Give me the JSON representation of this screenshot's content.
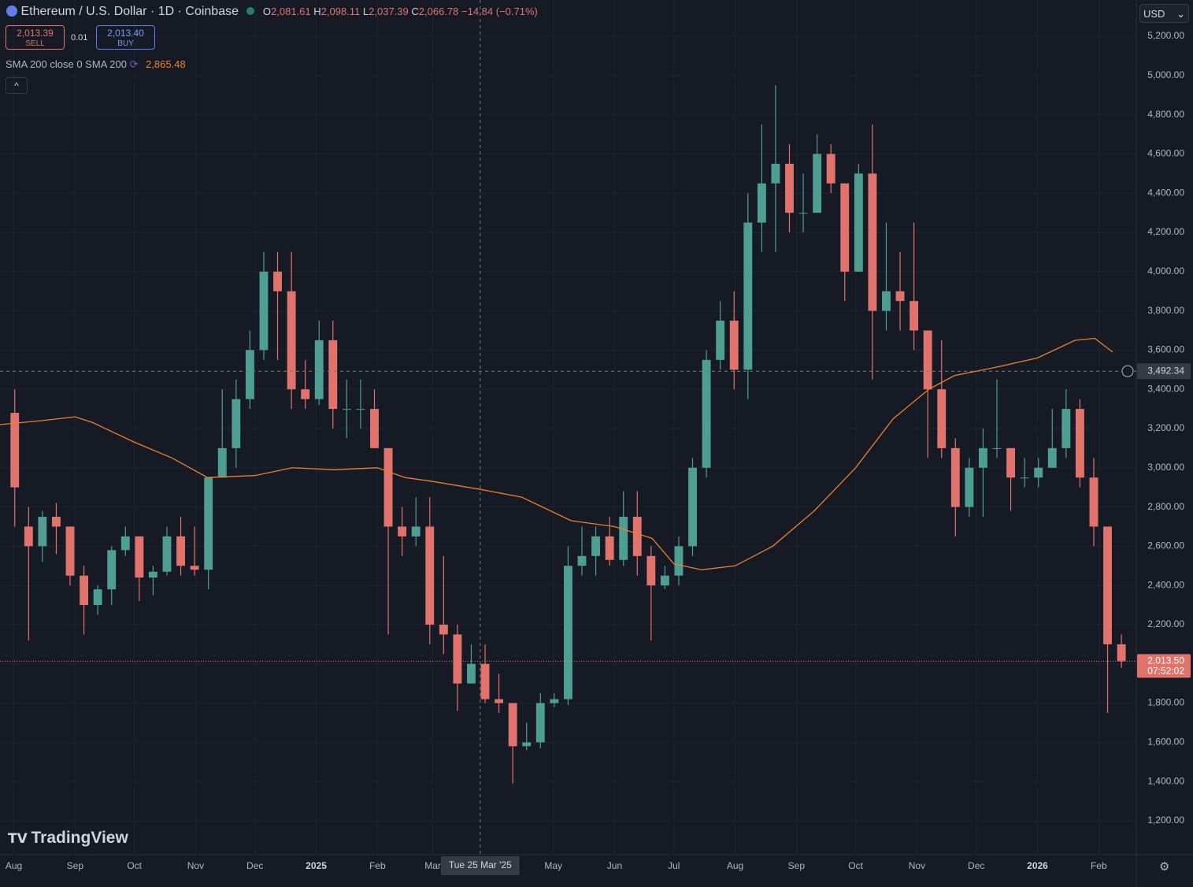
{
  "header": {
    "symbol": "Ethereum / U.S. Dollar · 1D · Coinbase",
    "o_label": "O",
    "open": "2,081.61",
    "h_label": "H",
    "high": "2,098.11",
    "l_label": "L",
    "low": "2,037.39",
    "c_label": "C",
    "close": "2,066.78",
    "change": "−14.84 (−0.71%)",
    "currency": "USD",
    "brand": "TradingView"
  },
  "trade": {
    "sell_price": "2,013.39",
    "sell": "SELL",
    "spread": "0.01",
    "buy_price": "2,013.40",
    "buy": "BUY"
  },
  "chart_data": {
    "type": "candlestick",
    "up_color": "#4f9e92",
    "down_color": "#e0736b",
    "grid": true,
    "xlim": [
      "2024-07-25",
      "2026-02-20"
    ],
    "xticks": [
      {
        "value": "2024-08-01",
        "label": "Aug"
      },
      {
        "value": "2024-09-01",
        "label": "Sep"
      },
      {
        "value": "2024-10-01",
        "label": "Oct"
      },
      {
        "value": "2024-11-01",
        "label": "Nov"
      },
      {
        "value": "2024-12-01",
        "label": "Dec"
      },
      {
        "value": "2025-01-01",
        "label": "2025"
      },
      {
        "value": "2025-02-01",
        "label": "Feb"
      },
      {
        "value": "2025-03-01",
        "label": "Mar"
      },
      {
        "value": "2025-05-01",
        "label": "May"
      },
      {
        "value": "2025-06-01",
        "label": "Jun"
      },
      {
        "value": "2025-07-01",
        "label": "Jul"
      },
      {
        "value": "2025-08-01",
        "label": "Aug"
      },
      {
        "value": "2025-09-01",
        "label": "Sep"
      },
      {
        "value": "2025-10-01",
        "label": "Oct"
      },
      {
        "value": "2025-11-01",
        "label": "Nov"
      },
      {
        "value": "2025-12-01",
        "label": "Dec"
      },
      {
        "value": "2026-01-01",
        "label": "2026"
      },
      {
        "value": "2026-02-01",
        "label": "Feb"
      }
    ],
    "ylim": [
      1027,
      5385
    ],
    "yticks": [
      {
        "value": 1200,
        "label": "1,200.00"
      },
      {
        "value": 1400,
        "label": "1,400.00"
      },
      {
        "value": 1600,
        "label": "1,600.00"
      },
      {
        "value": 1800,
        "label": "1,800.00"
      },
      {
        "value": 2000,
        "label": "2,000.00"
      },
      {
        "value": 2200,
        "label": "2,200.00"
      },
      {
        "value": 2400,
        "label": "2,400.00"
      },
      {
        "value": 2600,
        "label": "2,600.00"
      },
      {
        "value": 2800,
        "label": "2,800.00"
      },
      {
        "value": 3000,
        "label": "3,000.00"
      },
      {
        "value": 3200,
        "label": "3,200.00"
      },
      {
        "value": 3400,
        "label": "3,400.00"
      },
      {
        "value": 3600,
        "label": "3,600.00"
      },
      {
        "value": 3800,
        "label": "3,800.00"
      },
      {
        "value": 4000,
        "label": "4,000.00"
      },
      {
        "value": 4200,
        "label": "4,200.00"
      },
      {
        "value": 4400,
        "label": "4,400.00"
      },
      {
        "value": 4600,
        "label": "4,600.00"
      },
      {
        "value": 4800,
        "label": "4,800.00"
      },
      {
        "value": 5000,
        "label": "5,000.00"
      },
      {
        "value": 5200,
        "label": "5,200.00"
      }
    ],
    "x": [
      "2024-07-29",
      "2024-08-05",
      "2024-08-12",
      "2024-08-19",
      "2024-08-26",
      "2024-09-02",
      "2024-09-09",
      "2024-09-16",
      "2024-09-23",
      "2024-09-30",
      "2024-10-07",
      "2024-10-14",
      "2024-10-21",
      "2024-10-28",
      "2024-11-04",
      "2024-11-11",
      "2024-11-18",
      "2024-11-25",
      "2024-12-02",
      "2024-12-09",
      "2024-12-16",
      "2024-12-23",
      "2024-12-30",
      "2025-01-06",
      "2025-01-13",
      "2025-01-20",
      "2025-01-27",
      "2025-02-03",
      "2025-02-10",
      "2025-02-17",
      "2025-02-24",
      "2025-03-03",
      "2025-03-10",
      "2025-03-17",
      "2025-03-24",
      "2025-03-31",
      "2025-04-07",
      "2025-04-14",
      "2025-04-21",
      "2025-04-28",
      "2025-05-05",
      "2025-05-12",
      "2025-05-19",
      "2025-05-26",
      "2025-06-02",
      "2025-06-09",
      "2025-06-16",
      "2025-06-23",
      "2025-06-30",
      "2025-07-07",
      "2025-07-14",
      "2025-07-21",
      "2025-07-28",
      "2025-08-04",
      "2025-08-11",
      "2025-08-18",
      "2025-08-25",
      "2025-09-01",
      "2025-09-08",
      "2025-09-15",
      "2025-09-22",
      "2025-09-29",
      "2025-10-06",
      "2025-10-13",
      "2025-10-20",
      "2025-10-27",
      "2025-11-03",
      "2025-11-10",
      "2025-11-17",
      "2025-11-24",
      "2025-12-01",
      "2025-12-08",
      "2025-12-15",
      "2025-12-22",
      "2025-12-29",
      "2026-01-05",
      "2026-01-12",
      "2026-01-19",
      "2026-01-26",
      "2026-02-02",
      "2026-02-09"
    ],
    "open": [
      3280,
      2700,
      2600,
      2750,
      2700,
      2450,
      2300,
      2380,
      2580,
      2650,
      2440,
      2470,
      2650,
      2500,
      2480,
      2950,
      3100,
      3350,
      3600,
      4000,
      3900,
      3400,
      3350,
      3650,
      3300,
      3300,
      3300,
      3100,
      2700,
      2650,
      2700,
      2200,
      2150,
      1900,
      2000,
      1820,
      1800,
      1580,
      1600,
      1800,
      1820,
      2500,
      2550,
      2650,
      2530,
      2750,
      2550,
      2400,
      2450,
      2600,
      3000,
      3550,
      3750,
      3500,
      4250,
      4450,
      4550,
      4300,
      4300,
      4600,
      4450,
      4000,
      4500,
      3800,
      3900,
      3850,
      3700,
      3400,
      3100,
      2800,
      3000,
      3100,
      3100,
      2950,
      2950,
      3000,
      3100,
      3300,
      2950,
      2700,
      2100
    ],
    "high": [
      3400,
      2800,
      2780,
      2820,
      2700,
      2500,
      2400,
      2600,
      2700,
      2650,
      2500,
      2700,
      2750,
      2700,
      2950,
      3400,
      3450,
      3700,
      4100,
      4100,
      4100,
      3550,
      3750,
      3750,
      3450,
      3450,
      3400,
      3100,
      2800,
      2850,
      2850,
      2550,
      2200,
      2100,
      2100,
      1950,
      1800,
      1700,
      1850,
      1850,
      2600,
      2700,
      2700,
      2750,
      2880,
      2880,
      2600,
      2500,
      2650,
      3050,
      3600,
      3850,
      3900,
      4400,
      4750,
      4950,
      4650,
      4500,
      4700,
      4650,
      4450,
      4550,
      4750,
      4250,
      4100,
      4250,
      3700,
      3650,
      3150,
      3050,
      3200,
      3450,
      3100,
      3050,
      3050,
      3300,
      3400,
      3350,
      3050,
      2700,
      2150
    ],
    "low": [
      2700,
      2120,
      2520,
      2560,
      2400,
      2150,
      2250,
      2300,
      2550,
      2320,
      2350,
      2450,
      2450,
      2450,
      2380,
      2950,
      3000,
      3300,
      3550,
      3550,
      3300,
      3300,
      3320,
      3200,
      3150,
      3200,
      3100,
      2150,
      2550,
      2600,
      2100,
      2050,
      1760,
      1900,
      1800,
      1750,
      1390,
      1560,
      1570,
      1780,
      1790,
      2450,
      2450,
      2500,
      2500,
      2450,
      2120,
      2380,
      2400,
      2550,
      2950,
      3500,
      3400,
      3350,
      4100,
      4100,
      4200,
      4200,
      4300,
      4400,
      3850,
      4000,
      3450,
      3700,
      3700,
      3600,
      3050,
      3050,
      2650,
      2750,
      2750,
      3050,
      2780,
      2900,
      2900,
      3000,
      3050,
      2900,
      2600,
      1750,
      1980
    ],
    "close": [
      2900,
      2600,
      2750,
      2700,
      2450,
      2300,
      2380,
      2580,
      2650,
      2440,
      2470,
      2650,
      2500,
      2480,
      2950,
      3100,
      3350,
      3600,
      4000,
      3900,
      3400,
      3350,
      3650,
      3300,
      3300,
      3300,
      3100,
      2700,
      2650,
      2700,
      2200,
      2150,
      1900,
      2000,
      1820,
      1800,
      1580,
      1600,
      1800,
      1820,
      2500,
      2550,
      2650,
      2530,
      2750,
      2550,
      2400,
      2450,
      2600,
      3000,
      3550,
      3750,
      3500,
      4250,
      4450,
      4550,
      4300,
      4300,
      4600,
      4450,
      4000,
      4500,
      3800,
      3900,
      3850,
      3700,
      3400,
      3100,
      2800,
      3000,
      3100,
      3100,
      2950,
      2950,
      3000,
      3100,
      3300,
      2950,
      2700,
      2100,
      2013.5
    ],
    "sma": {
      "name": "SMA 200 close 0 SMA 200",
      "legend_value": "2,865.48",
      "color": "#e8812e",
      "x": [
        "2024-07-25",
        "2024-08-15",
        "2024-09-01",
        "2024-09-10",
        "2024-10-01",
        "2024-10-20",
        "2024-11-07",
        "2024-12-01",
        "2024-12-20",
        "2025-01-10",
        "2025-02-01",
        "2025-02-15",
        "2025-03-01",
        "2025-03-25",
        "2025-04-15",
        "2025-05-10",
        "2025-06-01",
        "2025-06-20",
        "2025-07-01",
        "2025-07-15",
        "2025-08-01",
        "2025-08-20",
        "2025-09-10",
        "2025-10-01",
        "2025-10-20",
        "2025-11-07",
        "2025-11-20",
        "2025-12-10",
        "2026-01-01",
        "2026-01-20",
        "2026-01-30",
        "2026-02-08"
      ],
      "values": [
        3220,
        3240,
        3260,
        3230,
        3130,
        3050,
        2950,
        2960,
        3000,
        2990,
        3000,
        2950,
        2930,
        2890,
        2850,
        2730,
        2700,
        2640,
        2510,
        2480,
        2500,
        2600,
        2780,
        3000,
        3250,
        3400,
        3470,
        3510,
        3560,
        3650,
        3660,
        3590
      ]
    },
    "crosshair": {
      "x": "2025-03-25",
      "x_label": "Tue 25 Mar '25",
      "y": {
        "value": 3492.34,
        "label": "3,492.34"
      }
    },
    "last_price": {
      "value": 2013.5,
      "label": "2,013.50",
      "countdown": "07:52:02"
    }
  }
}
